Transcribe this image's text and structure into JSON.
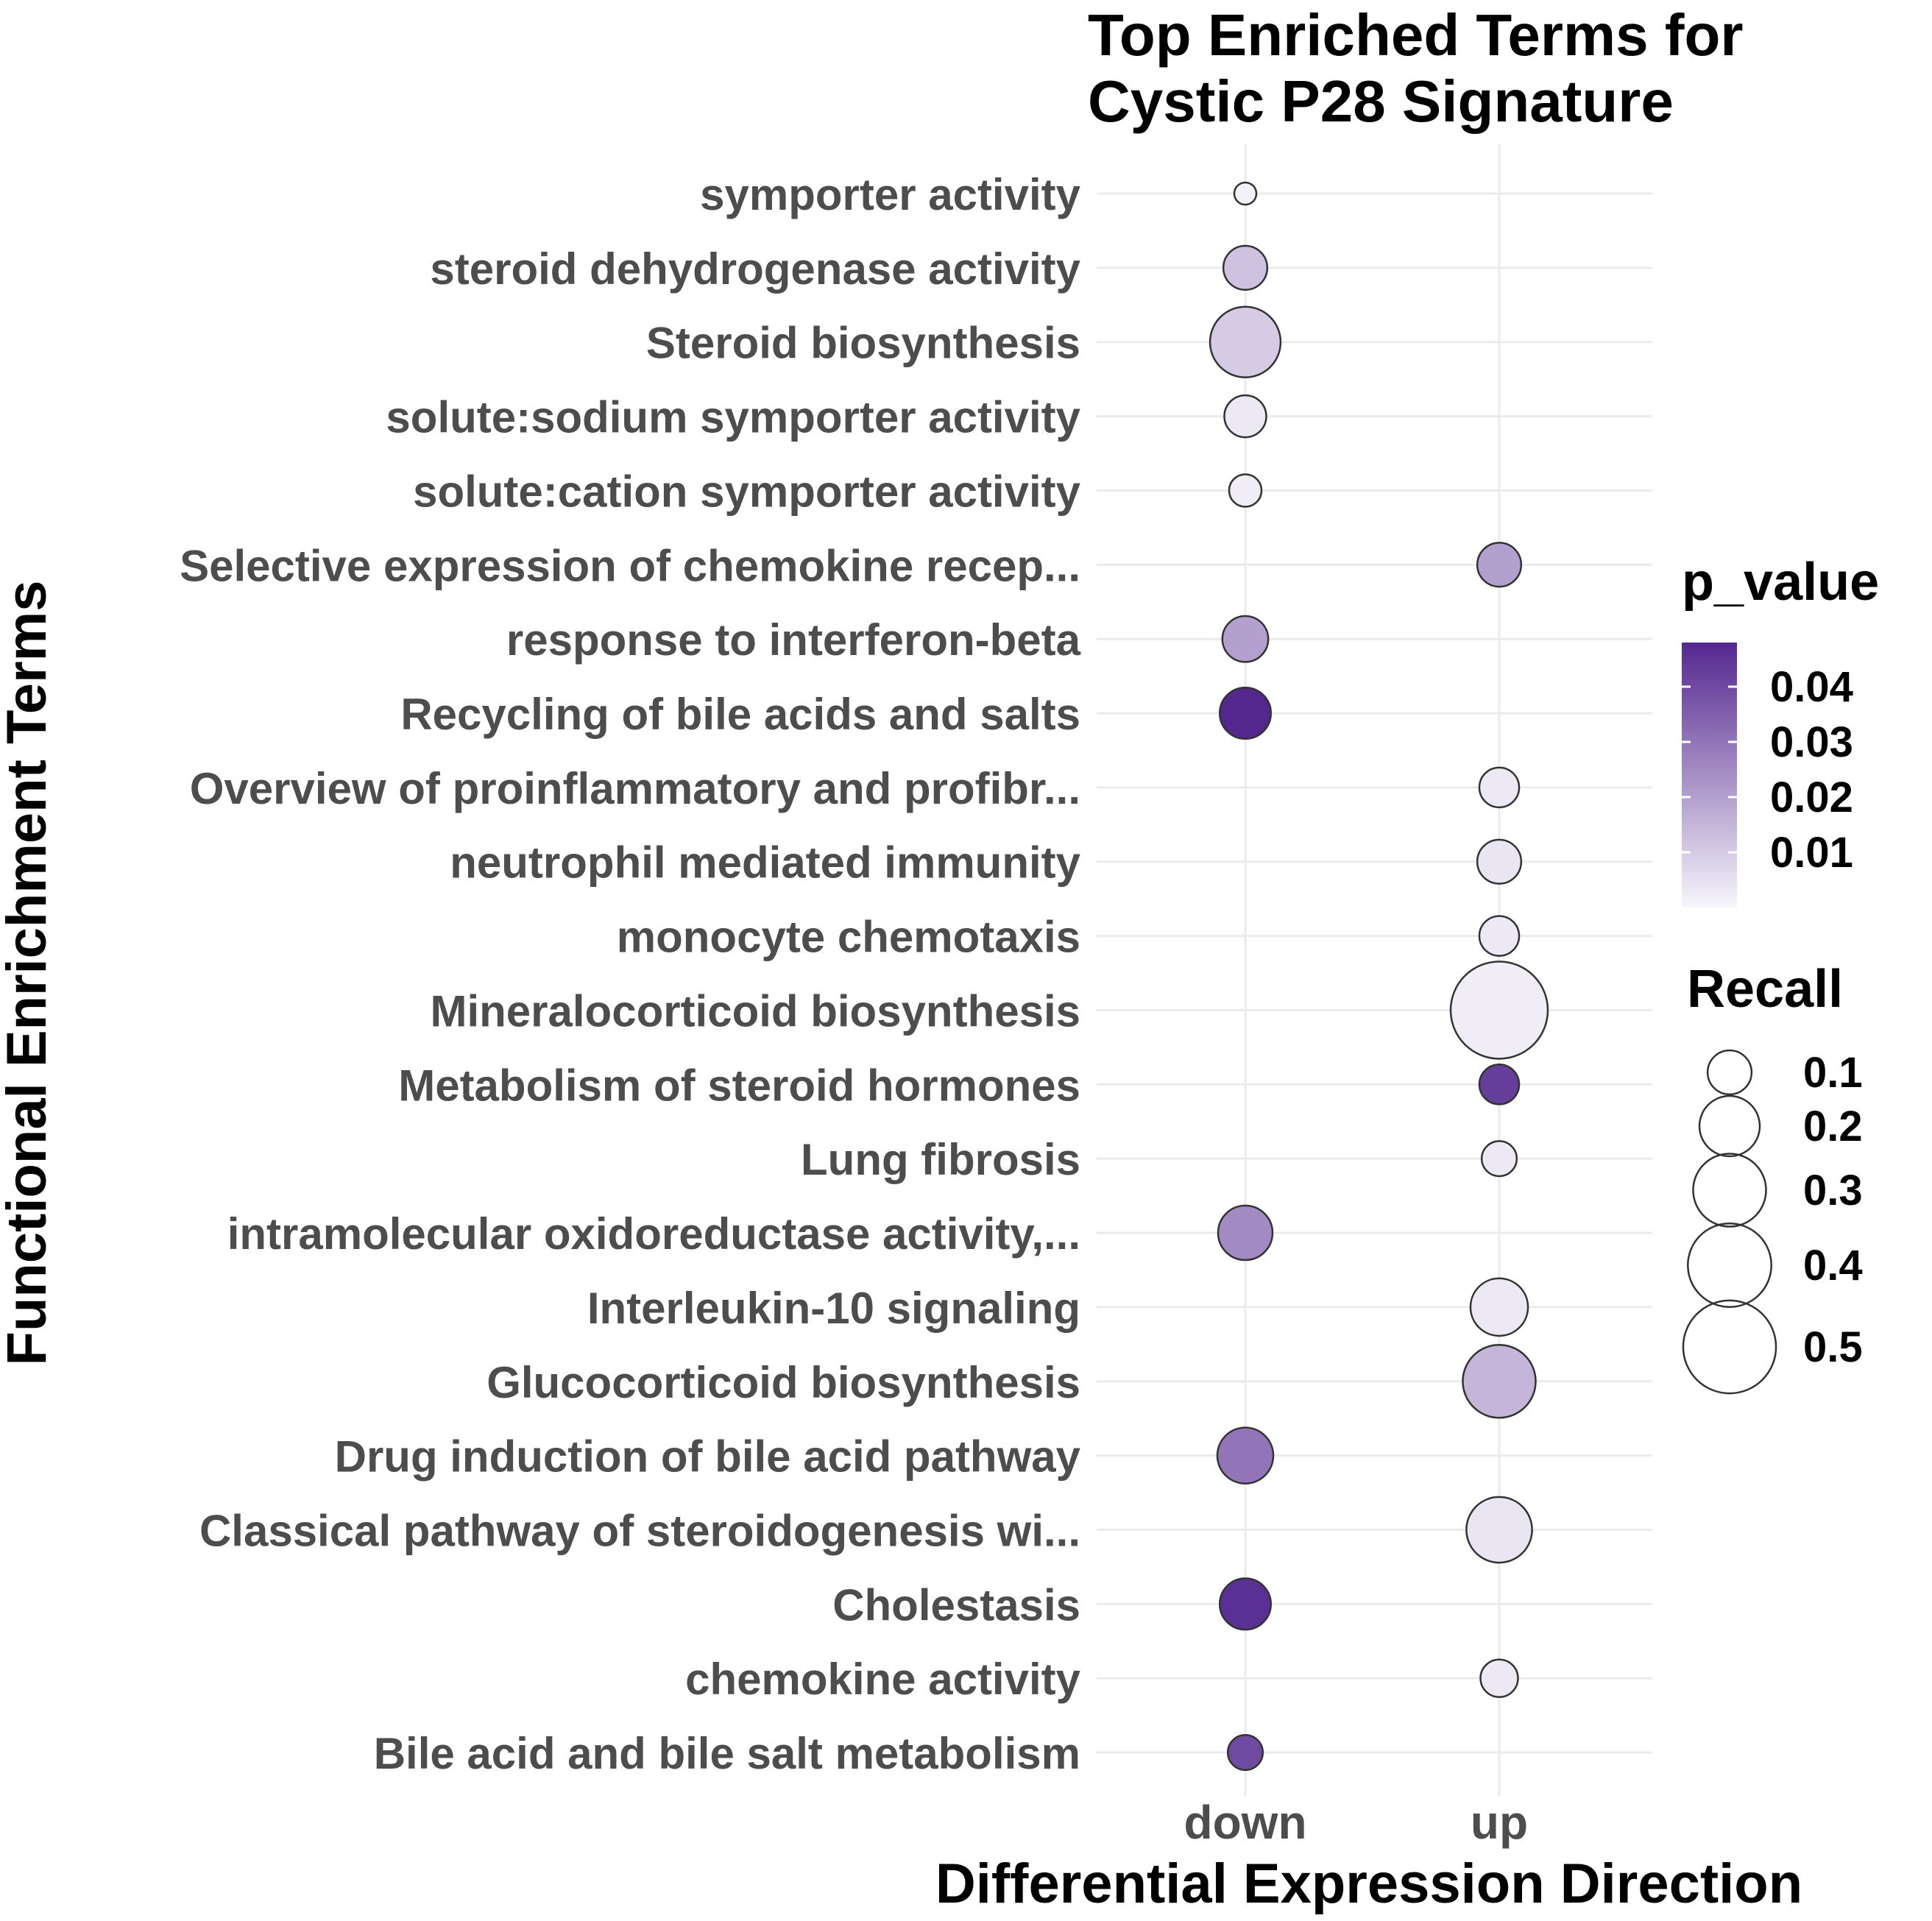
{
  "chart_data": {
    "type": "scatter",
    "title": [
      "Top Enriched Terms for",
      "Cystic P28 Signature"
    ],
    "xlabel": "Differential Expression Direction",
    "ylabel": "Functional Enrichment Terms",
    "x_categories": [
      "down",
      "up"
    ],
    "y_categories": [
      "symporter activity",
      "steroid dehydrogenase activity",
      "Steroid biosynthesis",
      "solute:sodium symporter activity",
      "solute:cation symporter activity",
      "Selective expression of chemokine recep...",
      "response to interferon-beta",
      "Recycling of bile acids and salts",
      "Overview of proinflammatory and profibr...",
      "neutrophil mediated immunity",
      "monocyte chemotaxis",
      "Mineralocorticoid biosynthesis",
      "Metabolism of steroid hormones",
      "Lung fibrosis",
      "intramolecular oxidoreductase activity,...",
      "Interleukin-10 signaling",
      "Glucocorticoid biosynthesis",
      "Drug induction of bile acid pathway",
      "Classical pathway of steroidogenesis wi...",
      "Cholestasis",
      "chemokine activity",
      "Bile acid and bile salt metabolism"
    ],
    "points": [
      {
        "term": "symporter activity",
        "direction": "down",
        "p_value": 0.001,
        "recall": 0.02
      },
      {
        "term": "steroid dehydrogenase activity",
        "direction": "down",
        "p_value": 0.012,
        "recall": 0.1
      },
      {
        "term": "Steroid biosynthesis",
        "direction": "down",
        "p_value": 0.01,
        "recall": 0.28
      },
      {
        "term": "solute:sodium symporter activity",
        "direction": "down",
        "p_value": 0.003,
        "recall": 0.09
      },
      {
        "term": "solute:cation symporter activity",
        "direction": "down",
        "p_value": 0.002,
        "recall": 0.05
      },
      {
        "term": "Selective expression of chemokine recep...",
        "direction": "up",
        "p_value": 0.02,
        "recall": 0.1
      },
      {
        "term": "response to interferon-beta",
        "direction": "down",
        "p_value": 0.02,
        "recall": 0.11
      },
      {
        "term": "Recycling of bile acids and salts",
        "direction": "down",
        "p_value": 0.048,
        "recall": 0.14
      },
      {
        "term": "Overview of proinflammatory and profibr...",
        "direction": "up",
        "p_value": 0.003,
        "recall": 0.08
      },
      {
        "term": "neutrophil mediated immunity",
        "direction": "up",
        "p_value": 0.004,
        "recall": 0.1
      },
      {
        "term": "monocyte chemotaxis",
        "direction": "up",
        "p_value": 0.003,
        "recall": 0.08
      },
      {
        "term": "Mineralocorticoid biosynthesis",
        "direction": "up",
        "p_value": 0.002,
        "recall": 0.55
      },
      {
        "term": "Metabolism of steroid hormones",
        "direction": "up",
        "p_value": 0.043,
        "recall": 0.08
      },
      {
        "term": "Lung fibrosis",
        "direction": "up",
        "p_value": 0.003,
        "recall": 0.06
      },
      {
        "term": "intramolecular oxidoreductase activity,...",
        "direction": "down",
        "p_value": 0.025,
        "recall": 0.16
      },
      {
        "term": "Interleukin-10 signaling",
        "direction": "up",
        "p_value": 0.003,
        "recall": 0.18
      },
      {
        "term": "Glucocorticoid biosynthesis",
        "direction": "up",
        "p_value": 0.015,
        "recall": 0.3
      },
      {
        "term": "Drug induction of bile acid pathway",
        "direction": "down",
        "p_value": 0.03,
        "recall": 0.17
      },
      {
        "term": "Classical pathway of steroidogenesis wi...",
        "direction": "up",
        "p_value": 0.004,
        "recall": 0.24
      },
      {
        "term": "Cholestasis",
        "direction": "down",
        "p_value": 0.046,
        "recall": 0.14
      },
      {
        "term": "chemokine activity",
        "direction": "up",
        "p_value": 0.003,
        "recall": 0.07
      },
      {
        "term": "Bile acid and bile salt metabolism",
        "direction": "down",
        "p_value": 0.04,
        "recall": 0.06
      }
    ],
    "color_scale": {
      "title": "p_value",
      "low_color": "#f7f6fb",
      "high_color": "#54278f",
      "range": [
        0.0,
        0.048
      ],
      "ticks": [
        0.04,
        0.03,
        0.02,
        0.01
      ],
      "tick_labels": [
        "0.04",
        "0.03",
        "0.02",
        "0.01"
      ]
    },
    "size_scale": {
      "title": "Recall",
      "values": [
        0.1,
        0.2,
        0.3,
        0.4,
        0.5
      ],
      "labels": [
        "0.1",
        "0.2",
        "0.3",
        "0.4",
        "0.5"
      ]
    },
    "grid": true,
    "legend_position": "right"
  }
}
